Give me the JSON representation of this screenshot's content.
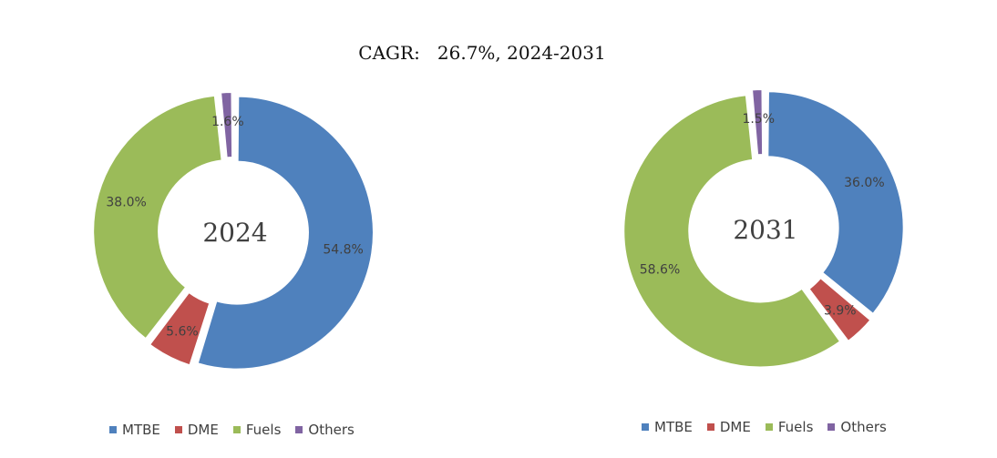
{
  "title": "CAGR:   26.7%, 2024-2031",
  "colors": {
    "MTBE": "#4F81BD",
    "DME": "#C0504D",
    "Fuels": "#9BBB59",
    "Others": "#8064A2"
  },
  "chart_data": [
    {
      "type": "pie",
      "center_label": "2024",
      "categories": [
        "MTBE",
        "DME",
        "Fuels",
        "Others"
      ],
      "values": [
        54.8,
        5.6,
        38.0,
        1.6
      ],
      "labels": [
        "54.8%",
        "5.6%",
        "38.0%",
        "1.6%"
      ],
      "legend": [
        "MTBE",
        "DME",
        "Fuels",
        "Others"
      ],
      "legend_position": "bottom"
    },
    {
      "type": "pie",
      "center_label": "2031",
      "categories": [
        "MTBE",
        "DME",
        "Fuels",
        "Others"
      ],
      "values": [
        36.0,
        3.9,
        58.6,
        1.5
      ],
      "labels": [
        "36.0%",
        "3.9%",
        "58.6%",
        "1.5%"
      ],
      "legend": [
        "MTBE",
        "DME",
        "Fuels",
        "Others"
      ],
      "legend_position": "bottom"
    }
  ]
}
